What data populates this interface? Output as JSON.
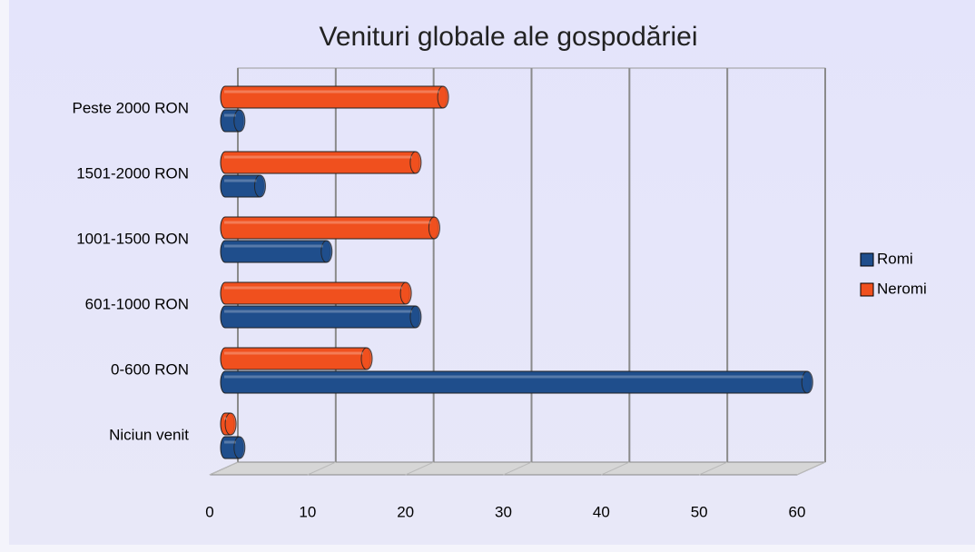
{
  "chart_data": {
    "type": "bar",
    "orientation": "horizontal",
    "title": "Venituri globale ale gospodăriei",
    "categories": [
      "Peste 2000 RON",
      "1501-2000 RON",
      "1001-1500 RON",
      "601-1000 RON",
      "0-600 RON",
      "Niciun venit"
    ],
    "series": [
      {
        "name": "Romi",
        "color": "#1f4e8c",
        "values": [
          2.3,
          4.4,
          11.2,
          20.3,
          60.3,
          2.3
        ]
      },
      {
        "name": "Neromi",
        "color": "#f0501e",
        "values": [
          23.1,
          20.3,
          22.2,
          19.3,
          15.3,
          1.4
        ]
      }
    ],
    "xlim": [
      0,
      60
    ],
    "xticks": [
      0,
      10,
      20,
      30,
      40,
      50,
      60
    ],
    "grid": true,
    "legend": "right"
  }
}
